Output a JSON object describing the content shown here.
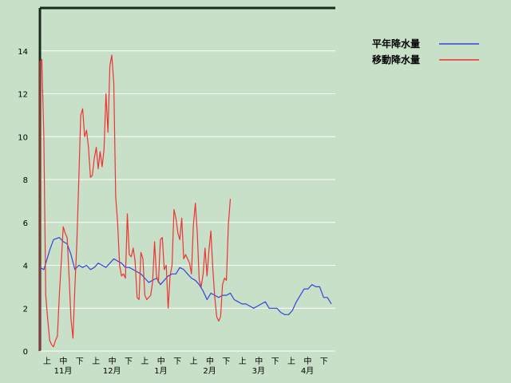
{
  "chart_data": {
    "type": "line",
    "title": "",
    "xlabel": "",
    "ylabel": "",
    "ylim": [
      0,
      16
    ],
    "yticks": [
      0,
      2,
      4,
      6,
      8,
      10,
      12,
      14
    ],
    "grid": "horizontal",
    "legend_position": "top-right",
    "x_units": "day index from start of November",
    "x_period_labels": [
      "上",
      "中",
      "下",
      "上",
      "中",
      "下",
      "上",
      "中",
      "下",
      "上",
      "中",
      "下",
      "上",
      "中",
      "下",
      "上",
      "中",
      "下"
    ],
    "x_month_labels": [
      "11月",
      "12月",
      "1月",
      "2月",
      "3月",
      "4月"
    ],
    "series": [
      {
        "name": "平年降水量",
        "color": "#3344dd",
        "points": [
          [
            0,
            0
          ],
          [
            0,
            3.9
          ],
          [
            2,
            3.8
          ],
          [
            5,
            4.7
          ],
          [
            7,
            5.2
          ],
          [
            10,
            5.3
          ],
          [
            12,
            5.1
          ],
          [
            14,
            5.0
          ],
          [
            16,
            4.5
          ],
          [
            18,
            3.8
          ],
          [
            20,
            4.0
          ],
          [
            22,
            3.9
          ],
          [
            24,
            4.0
          ],
          [
            26,
            3.8
          ],
          [
            28,
            3.9
          ],
          [
            30,
            4.1
          ],
          [
            32,
            4.0
          ],
          [
            34,
            3.9
          ],
          [
            36,
            4.1
          ],
          [
            38,
            4.3
          ],
          [
            40,
            4.2
          ],
          [
            42,
            4.1
          ],
          [
            44,
            3.9
          ],
          [
            46,
            3.9
          ],
          [
            48,
            3.8
          ],
          [
            50,
            3.7
          ],
          [
            52,
            3.6
          ],
          [
            54,
            3.4
          ],
          [
            56,
            3.2
          ],
          [
            58,
            3.3
          ],
          [
            60,
            3.4
          ],
          [
            62,
            3.1
          ],
          [
            64,
            3.3
          ],
          [
            66,
            3.5
          ],
          [
            68,
            3.6
          ],
          [
            70,
            3.6
          ],
          [
            72,
            3.9
          ],
          [
            74,
            3.8
          ],
          [
            76,
            3.6
          ],
          [
            78,
            3.4
          ],
          [
            80,
            3.3
          ],
          [
            82,
            3.1
          ],
          [
            84,
            2.8
          ],
          [
            86,
            2.4
          ],
          [
            88,
            2.7
          ],
          [
            90,
            2.6
          ],
          [
            92,
            2.5
          ],
          [
            94,
            2.6
          ],
          [
            96,
            2.6
          ],
          [
            98,
            2.7
          ],
          [
            100,
            2.4
          ],
          [
            102,
            2.3
          ],
          [
            104,
            2.2
          ],
          [
            106,
            2.2
          ],
          [
            108,
            2.1
          ],
          [
            110,
            2.0
          ],
          [
            112,
            2.1
          ],
          [
            114,
            2.2
          ],
          [
            116,
            2.3
          ],
          [
            118,
            2.0
          ],
          [
            120,
            2.0
          ],
          [
            122,
            2.0
          ],
          [
            124,
            1.8
          ],
          [
            126,
            1.7
          ],
          [
            128,
            1.7
          ],
          [
            130,
            1.9
          ],
          [
            132,
            2.3
          ],
          [
            134,
            2.6
          ],
          [
            136,
            2.9
          ],
          [
            138,
            2.9
          ],
          [
            140,
            3.1
          ],
          [
            142,
            3.0
          ],
          [
            144,
            3.0
          ],
          [
            146,
            2.5
          ],
          [
            148,
            2.5
          ],
          [
            150,
            2.2
          ]
        ]
      },
      {
        "name": "移動降水量",
        "color": "#ee3333",
        "points": [
          [
            0,
            0
          ],
          [
            0,
            13.5
          ],
          [
            1,
            13.6
          ],
          [
            2,
            10
          ],
          [
            3,
            2.6
          ],
          [
            4,
            1.5
          ],
          [
            5,
            0.5
          ],
          [
            6,
            0.3
          ],
          [
            7,
            0.2
          ],
          [
            8,
            0.5
          ],
          [
            9,
            0.7
          ],
          [
            10,
            2.6
          ],
          [
            11,
            4.2
          ],
          [
            12,
            5.8
          ],
          [
            13,
            5.5
          ],
          [
            14,
            5.3
          ],
          [
            15,
            3.5
          ],
          [
            16,
            1.5
          ],
          [
            17,
            0.6
          ],
          [
            18,
            3.0
          ],
          [
            19,
            5.0
          ],
          [
            20,
            8.0
          ],
          [
            21,
            11.0
          ],
          [
            22,
            11.3
          ],
          [
            23,
            10.0
          ],
          [
            24,
            10.3
          ],
          [
            25,
            9.5
          ],
          [
            26,
            8.1
          ],
          [
            27,
            8.2
          ],
          [
            28,
            9.0
          ],
          [
            29,
            9.5
          ],
          [
            30,
            8.5
          ],
          [
            31,
            9.3
          ],
          [
            32,
            8.6
          ],
          [
            33,
            9.4
          ],
          [
            34,
            12.0
          ],
          [
            35,
            10.2
          ],
          [
            36,
            13.3
          ],
          [
            37,
            13.8
          ],
          [
            38,
            12.5
          ],
          [
            39,
            7.2
          ],
          [
            40,
            6.0
          ],
          [
            41,
            4.0
          ],
          [
            42,
            3.5
          ],
          [
            43,
            3.6
          ],
          [
            44,
            3.4
          ],
          [
            45,
            6.4
          ],
          [
            46,
            4.5
          ],
          [
            47,
            4.4
          ],
          [
            48,
            4.8
          ],
          [
            49,
            4.2
          ],
          [
            50,
            2.5
          ],
          [
            51,
            2.4
          ],
          [
            52,
            4.6
          ],
          [
            53,
            4.3
          ],
          [
            54,
            2.6
          ],
          [
            55,
            2.4
          ],
          [
            56,
            2.5
          ],
          [
            57,
            2.6
          ],
          [
            58,
            3.2
          ],
          [
            59,
            5.1
          ],
          [
            60,
            3.5
          ],
          [
            61,
            3.2
          ],
          [
            62,
            5.2
          ],
          [
            63,
            5.3
          ],
          [
            64,
            3.8
          ],
          [
            65,
            4.0
          ],
          [
            66,
            2.0
          ],
          [
            67,
            3.5
          ],
          [
            68,
            4.0
          ],
          [
            69,
            6.6
          ],
          [
            70,
            6.2
          ],
          [
            71,
            5.5
          ],
          [
            72,
            5.2
          ],
          [
            73,
            6.2
          ],
          [
            74,
            4.3
          ],
          [
            75,
            4.5
          ],
          [
            76,
            4.3
          ],
          [
            77,
            4.1
          ],
          [
            78,
            3.6
          ],
          [
            79,
            5.9
          ],
          [
            80,
            6.9
          ],
          [
            81,
            5.5
          ],
          [
            82,
            3.3
          ],
          [
            83,
            3.0
          ],
          [
            84,
            3.6
          ],
          [
            85,
            4.8
          ],
          [
            86,
            3.5
          ],
          [
            87,
            4.7
          ],
          [
            88,
            5.6
          ],
          [
            89,
            3.8
          ],
          [
            90,
            2.5
          ],
          [
            91,
            1.6
          ],
          [
            92,
            1.4
          ],
          [
            93,
            1.6
          ],
          [
            94,
            3.1
          ],
          [
            95,
            3.4
          ],
          [
            96,
            3.3
          ],
          [
            97,
            5.9
          ],
          [
            98,
            7.1
          ]
        ]
      }
    ]
  }
}
